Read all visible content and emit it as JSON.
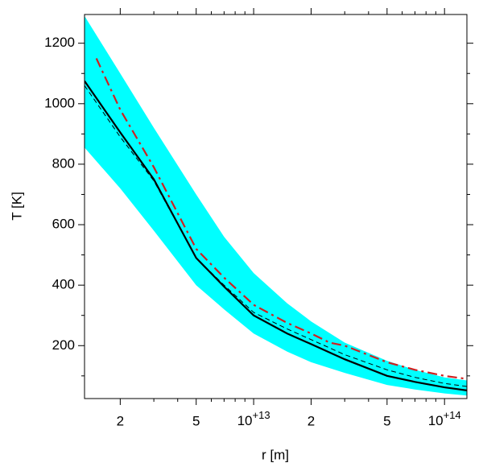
{
  "chart_data": {
    "type": "line",
    "xlabel": "r [m]",
    "ylabel": "T [K]",
    "xscale": "log",
    "xlim": [
      1300000000000.0,
      131000000000000.0
    ],
    "ylim": [
      25,
      1295
    ],
    "xticks": [
      {
        "value": 2000000000000.0,
        "label": "2"
      },
      {
        "value": 5000000000000.0,
        "label": "5"
      },
      {
        "value": 10000000000000.0,
        "label": "10+13"
      },
      {
        "value": 20000000000000.0,
        "label": "2"
      },
      {
        "value": 50000000000000.0,
        "label": "5"
      },
      {
        "value": 100000000000000.0,
        "label": "10+14"
      }
    ],
    "xminorticks": [
      3000000000000.0,
      4000000000000.0,
      6000000000000.0,
      7000000000000.0,
      8000000000000.0,
      9000000000000.0,
      30000000000000.0,
      40000000000000.0,
      60000000000000.0,
      70000000000000.0,
      80000000000000.0,
      90000000000000.0
    ],
    "yticks": [
      200,
      400,
      600,
      800,
      1000,
      1200
    ],
    "yminorticks": [
      100,
      300,
      500,
      700,
      900,
      1100
    ],
    "band": {
      "color": "#00ffff",
      "x": [
        1300000000000.0,
        2000000000000.0,
        3000000000000.0,
        5000000000000.0,
        7000000000000.0,
        10000000000000.0,
        15000000000000.0,
        20000000000000.0,
        30000000000000.0,
        50000000000000.0,
        70000000000000.0,
        100000000000000.0,
        131000000000000.0
      ],
      "upper": [
        1290,
        1100,
        920,
        700,
        560,
        440,
        340,
        280,
        210,
        150,
        120,
        95,
        85
      ],
      "lower": [
        855,
        720,
        580,
        400,
        320,
        240,
        180,
        145,
        110,
        70,
        55,
        42,
        35
      ]
    },
    "series": [
      {
        "color": "#000000",
        "dash": "solid",
        "width": 2.2,
        "x": [
          1300000000000.0,
          2000000000000.0,
          3000000000000.0,
          5000000000000.0,
          7000000000000.0,
          10000000000000.0,
          15000000000000.0,
          20000000000000.0,
          30000000000000.0,
          50000000000000.0,
          70000000000000.0,
          100000000000000.0,
          131000000000000.0
        ],
        "values": [
          1075,
          905,
          750,
          490,
          395,
          300,
          240,
          205,
          155,
          100,
          80,
          62,
          52
        ]
      },
      {
        "color": "#000000",
        "dash": "dashed",
        "width": 1,
        "x": [
          1300000000000.0,
          2000000000000.0,
          3000000000000.0,
          5000000000000.0,
          7000000000000.0,
          10000000000000.0,
          15000000000000.0,
          20000000000000.0,
          30000000000000.0,
          50000000000000.0,
          70000000000000.0,
          100000000000000.0,
          131000000000000.0
        ],
        "values": [
          1060,
          890,
          745,
          490,
          400,
          310,
          255,
          220,
          170,
          120,
          95,
          75,
          65
        ]
      },
      {
        "color": "#d02020",
        "dash": "dashdot",
        "width": 2.2,
        "x": [
          1500000000000.0,
          2000000000000.0,
          3000000000000.0,
          5000000000000.0,
          7000000000000.0,
          10000000000000.0,
          15000000000000.0,
          20000000000000.0,
          25000000000000.0,
          30000000000000.0,
          50000000000000.0,
          70000000000000.0,
          100000000000000.0,
          131000000000000.0
        ],
        "values": [
          1150,
          980,
          790,
          520,
          425,
          335,
          275,
          240,
          210,
          200,
          145,
          120,
          100,
          90
        ]
      }
    ]
  }
}
